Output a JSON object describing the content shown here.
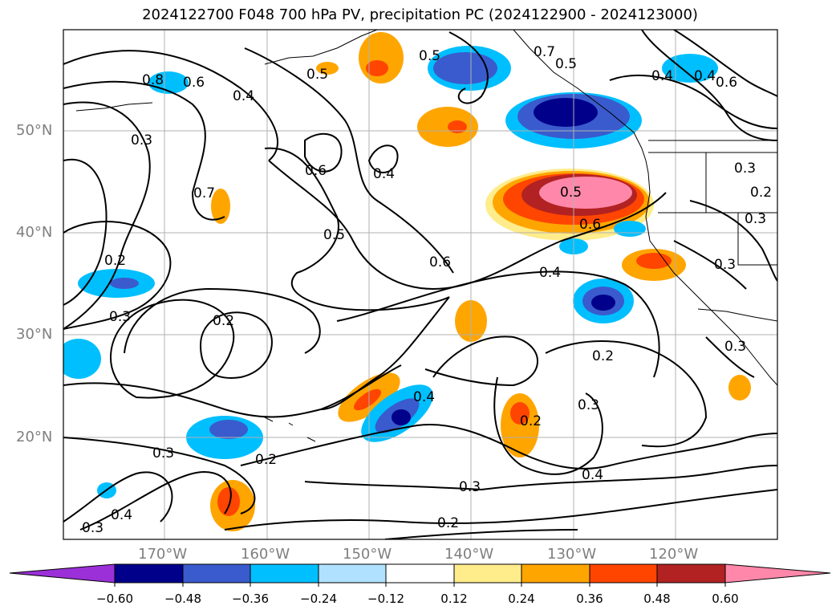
{
  "title": "2024122700 F048 700 hPa PV, precipitation PC (2024122900 - 2024123000)",
  "lat_labels": [
    "50°N",
    "40°N",
    "30°N",
    "20°N"
  ],
  "lon_labels": [
    "170°W",
    "160°W",
    "150°W",
    "140°W",
    "130°W",
    "120°W"
  ],
  "contour_labels": [
    "0.5",
    "0.5",
    "0.6",
    "0.4",
    "0.6",
    "0.4",
    "0.7",
    "0.8",
    "0.6",
    "0.5",
    "0.4",
    "0.3",
    "0.4",
    "0.5",
    "0.6",
    "0.4",
    "0.7",
    "0.5",
    "0.3",
    "0.6",
    "0.3",
    "0.2",
    "0.2",
    "0.3",
    "0.3",
    "0.2",
    "0.4",
    "0.2",
    "0.3",
    "0.2",
    "0.4",
    "0.3",
    "0.2",
    "0.4",
    "0.3",
    "0.3",
    "0.3",
    "0.2"
  ],
  "colorbar": {
    "colors": [
      "#9b30d8",
      "#00008b",
      "#3a5bcd",
      "#00bfff",
      "#b0e2ff",
      "#ffffff",
      "#ffec8b",
      "#ffa500",
      "#ff4500",
      "#b22222",
      "#ff88aa"
    ],
    "labels": [
      "−0.60",
      "−0.48",
      "−0.36",
      "−0.24",
      "−0.12",
      "0.12",
      "0.24",
      "0.36",
      "0.48",
      "0.60"
    ]
  }
}
